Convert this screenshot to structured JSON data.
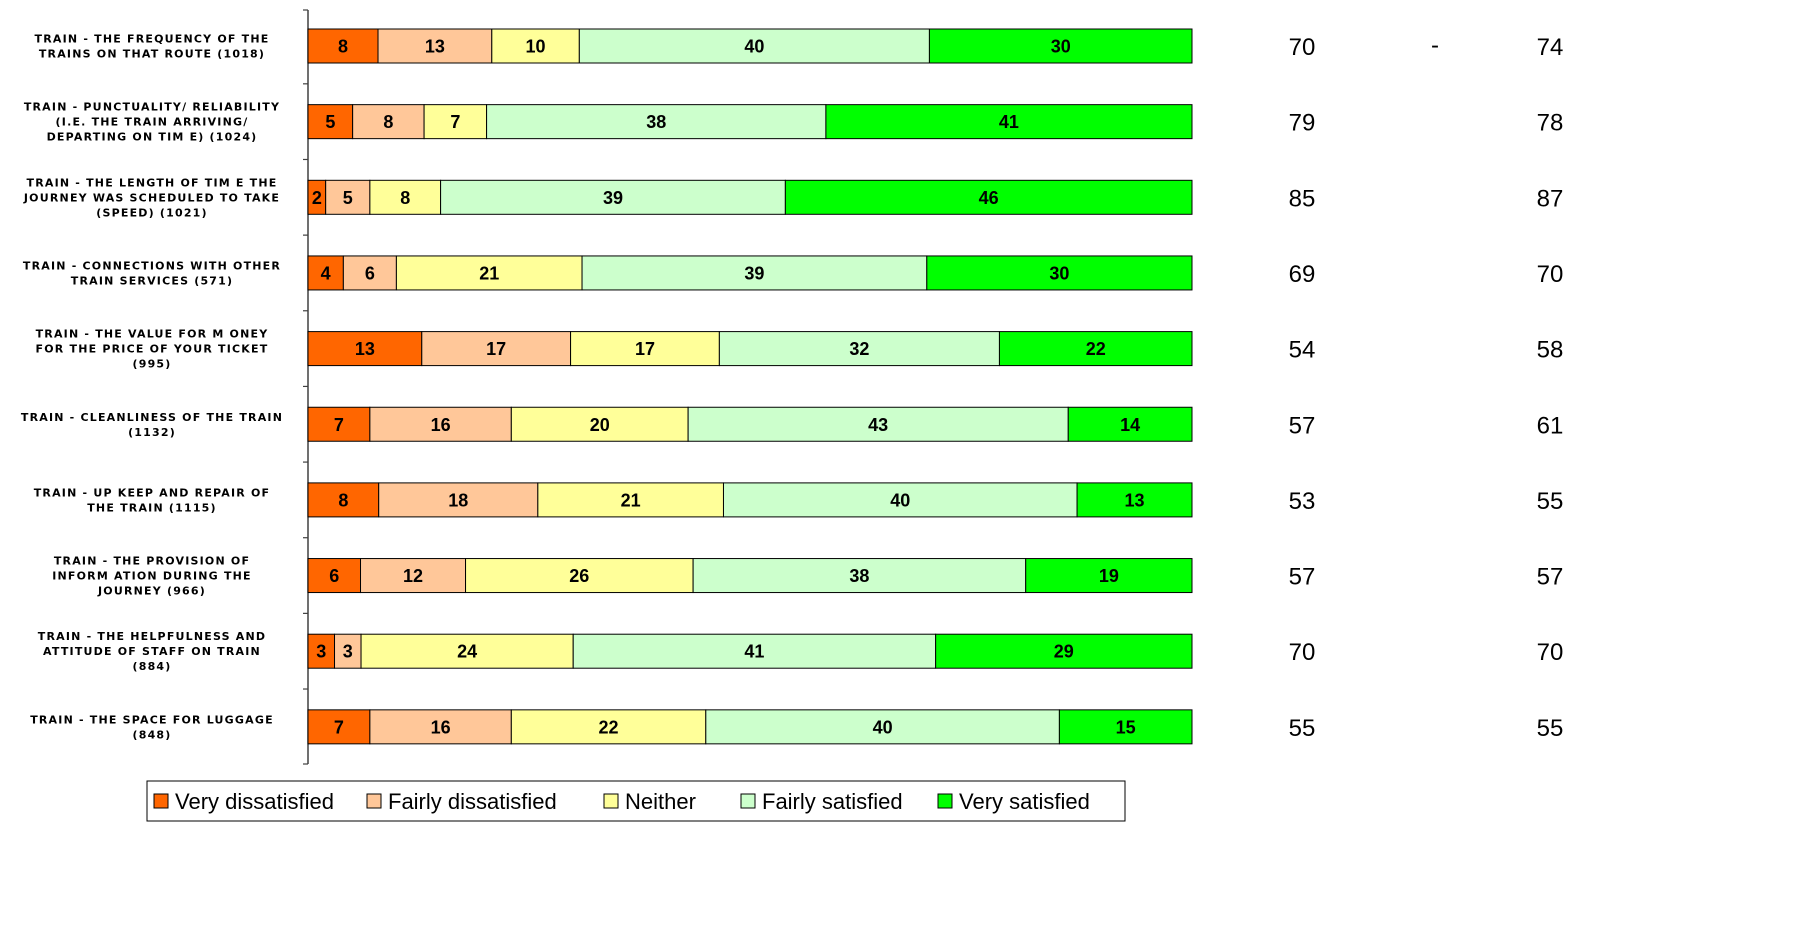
{
  "chart_data": {
    "type": "bar",
    "orientation": "horizontal",
    "stacked": true,
    "percent_stacked": true,
    "categories": [
      [
        "TRAIN - THE FREQUENCY OF THE",
        "TRAINS ON THAT ROUTE (1018)"
      ],
      [
        "TRAIN - PUNCTUALITY/ RELIABILITY",
        "(I.E. THE TRAIN ARRIVING/",
        "DEPARTING ON TIM E) (1024)"
      ],
      [
        "TRAIN - THE LENGTH OF TIM E THE",
        "JOURNEY WAS SCHEDULED TO TAKE",
        "(SPEED) (1021)"
      ],
      [
        "TRAIN - CONNECTIONS WITH OTHER",
        "TRAIN SERVICES (571)"
      ],
      [
        "TRAIN - THE VALUE FOR M ONEY",
        "FOR THE PRICE OF YOUR TICKET",
        "(995)"
      ],
      [
        "TRAIN - CLEANLINESS OF THE TRAIN",
        "(1132)"
      ],
      [
        "TRAIN - UP KEEP AND REPAIR OF",
        "THE TRAIN (1115)"
      ],
      [
        "TRAIN - THE PROVISION OF",
        "INFORM ATION DURING THE",
        "JOURNEY (966)"
      ],
      [
        "TRAIN - THE HELPFULNESS AND",
        "ATTITUDE OF STAFF ON TRAIN",
        "(884)"
      ],
      [
        "TRAIN - THE SPACE FOR LUGGAGE",
        "(848)"
      ]
    ],
    "series": [
      {
        "name": "Very dissatisfied",
        "color": "#FF6600",
        "values": [
          8,
          5,
          2,
          4,
          13,
          7,
          8,
          6,
          3,
          7
        ]
      },
      {
        "name": "Fairly dissatisfied",
        "color": "#FFC799",
        "values": [
          13,
          8,
          5,
          6,
          17,
          16,
          18,
          12,
          3,
          16
        ]
      },
      {
        "name": "Neither",
        "color": "#FFFF99",
        "values": [
          10,
          7,
          8,
          21,
          17,
          20,
          21,
          26,
          24,
          22
        ]
      },
      {
        "name": "Fairly satisfied",
        "color": "#CCFFCC",
        "values": [
          40,
          38,
          39,
          39,
          32,
          43,
          40,
          38,
          41,
          40
        ]
      },
      {
        "name": "Very satisfied",
        "color": "#00FF00",
        "values": [
          30,
          41,
          46,
          30,
          22,
          14,
          13,
          19,
          29,
          15
        ]
      }
    ],
    "side_column_1": [
      "70",
      "79",
      "85",
      "69",
      "54",
      "57",
      "53",
      "57",
      "70",
      "55"
    ],
    "side_column_2": [
      "74",
      "78",
      "87",
      "70",
      "58",
      "61",
      "55",
      "57",
      "70",
      "55"
    ],
    "side_separators": [
      "-",
      "",
      "",
      "",
      "",
      "",
      "",
      "",
      "",
      ""
    ],
    "legend_position": "bottom",
    "grid": false
  }
}
